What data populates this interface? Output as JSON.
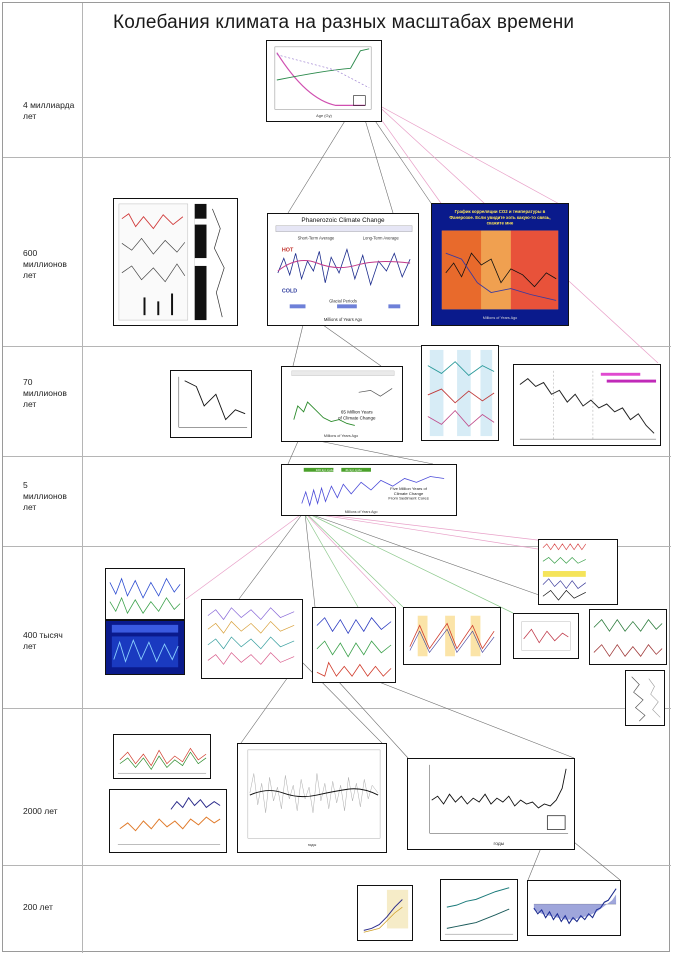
{
  "title": "Колебания климата на разных масштабах времени",
  "rows": [
    {
      "label": "4 миллиарда\nлет"
    },
    {
      "label": "600\nмиллионов\nлет"
    },
    {
      "label": "70\nмиллионов\nлет"
    },
    {
      "label": "5\nмиллионов\nлет"
    },
    {
      "label": "400 тысяч\nлет"
    },
    {
      "label": "2000 лет"
    },
    {
      "label": "200 лет"
    }
  ],
  "figures": {
    "phanerozoic": {
      "title": "Phanerozoic Climate Change",
      "legend_short": "Short-Term Average",
      "legend_long": "Long-Term Average",
      "hot": "HOT",
      "cold": "COLD",
      "glacial": "Glacial Periods",
      "xlabel": "Millions of Years Ago"
    },
    "co2_correlation": {
      "title": "График корреляции CO2 и температуры в Фанерозое. Если увидите хоть какую-то связь, скажите мне"
    },
    "cenozoic": {
      "caption": "65 Million Years\nof Climate Change",
      "xlabel": "Millions of Years Ago"
    },
    "five_myr": {
      "cycle1": "100 kyr cycle",
      "cycle2": "41 kyr cycle",
      "caption": "Five Million Years of\nClimate Change\nFrom Sediment Cores",
      "xlabel": "Millions of Years Ago"
    },
    "two_thousand": {
      "xlabel": "годы"
    }
  },
  "colors": {
    "pink_connector": "#e8a0c8",
    "green_connector": "#8cc88c",
    "gray_connector": "#6e6e6e",
    "co2_bg": "#e86a2c",
    "deep_blue": "#0a1a8c"
  }
}
